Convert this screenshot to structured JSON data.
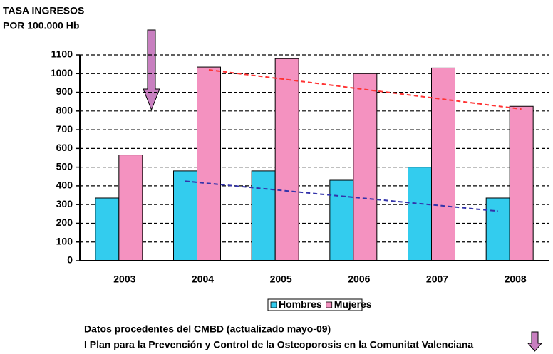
{
  "chart_data": {
    "type": "bar",
    "ylabel": [
      "TASA INGRESOS",
      "POR 100.000 Hb"
    ],
    "categories": [
      "2003",
      "2004",
      "2005",
      "2006",
      "2007",
      "2008"
    ],
    "series": [
      {
        "name": "Hombres",
        "color": "#33ccee",
        "values": [
          335,
          480,
          480,
          430,
          500,
          335
        ],
        "trend_color": "#3333aa",
        "trend": [
          null,
          425,
          385,
          345,
          305,
          265
        ]
      },
      {
        "name": "Mujeres",
        "color": "#f492c0",
        "values": [
          565,
          1035,
          1080,
          1000,
          1030,
          825
        ],
        "trend_color": "#ff3333",
        "trend": [
          null,
          1020,
          968,
          915,
          863,
          810
        ]
      }
    ],
    "ylim": [
      0,
      1100
    ],
    "yticks": [
      0,
      100,
      200,
      300,
      400,
      500,
      600,
      700,
      800,
      900,
      1000,
      1100
    ],
    "grid": true,
    "legend": "bottom",
    "notes": [
      "Datos procedentes del CMBD (actualizado mayo-09)",
      "I Plan para la Prevención y Control de la Osteoporosis en la Comunitat Valenciana"
    ]
  }
}
